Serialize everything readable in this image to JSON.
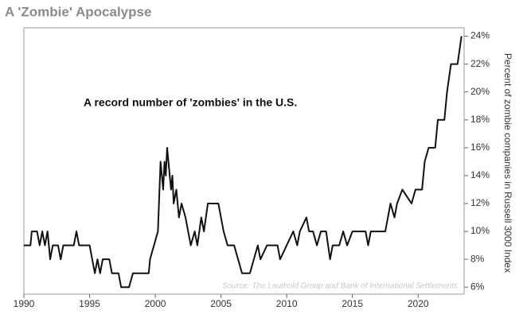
{
  "chart_data": {
    "type": "line",
    "title": "A 'Zombie' Apocalypse",
    "annotation": "A record number of 'zombies' in the U.S.",
    "source": "Source: The Lauthold Group and Bank of International Settlements",
    "y_label": "Percent of zombie companies in Russell 3000 Index",
    "xlim": [
      1990,
      2023.5
    ],
    "xticks": [
      1990,
      1995,
      2000,
      2005,
      2010,
      2015,
      2020
    ],
    "ylim": [
      5.5,
      24.6
    ],
    "yticks": [
      {
        "value": 6,
        "label": "6%"
      },
      {
        "value": 8,
        "label": "8%"
      },
      {
        "value": 10,
        "label": "10%"
      },
      {
        "value": 12,
        "label": "12%"
      },
      {
        "value": 14,
        "label": "14%"
      },
      {
        "value": 16,
        "label": "16%"
      },
      {
        "value": 18,
        "label": "18%"
      },
      {
        "value": 20,
        "label": "20%"
      },
      {
        "value": 22,
        "label": "22%"
      },
      {
        "value": 24,
        "label": "24%"
      }
    ],
    "series": [
      {
        "color": "#111111",
        "x": [
          1990.0,
          1990.5,
          1990.6,
          1991.0,
          1991.2,
          1991.4,
          1991.6,
          1991.8,
          1992.0,
          1992.2,
          1992.6,
          1992.8,
          1993.0,
          1993.8,
          1994.0,
          1994.2,
          1995.0,
          1995.2,
          1995.4,
          1995.6,
          1995.8,
          1996.0,
          1996.5,
          1996.7,
          1997.2,
          1997.4,
          1998.0,
          1998.3,
          1999.5,
          1999.6,
          1999.9,
          2000.2,
          2000.4,
          2000.5,
          2000.6,
          2000.7,
          2000.8,
          2000.9,
          2001.0,
          2001.2,
          2001.3,
          2001.4,
          2001.6,
          2001.8,
          2002.0,
          2002.3,
          2002.5,
          2002.7,
          2003.0,
          2003.2,
          2003.5,
          2003.7,
          2004.0,
          2004.8,
          2005.0,
          2005.2,
          2005.5,
          2006.0,
          2006.3,
          2006.6,
          2007.2,
          2007.5,
          2007.8,
          2008.0,
          2008.5,
          2009.3,
          2009.5,
          2010.0,
          2010.5,
          2010.8,
          2011.0,
          2011.5,
          2011.7,
          2012.0,
          2012.3,
          2012.6,
          2013.0,
          2013.3,
          2013.5,
          2014.0,
          2014.3,
          2014.6,
          2015.0,
          2016.0,
          2016.2,
          2016.4,
          2017.5,
          2017.7,
          2017.9,
          2018.2,
          2018.4,
          2018.8,
          2019.5,
          2019.8,
          2020.3,
          2020.5,
          2020.8,
          2021.3,
          2021.5,
          2022.0,
          2022.2,
          2022.5,
          2023.0,
          2023.3
        ],
        "values": [
          9,
          9,
          10,
          10,
          9,
          10,
          9,
          10,
          8,
          9,
          9,
          8,
          9,
          9,
          10,
          9,
          9,
          8,
          7,
          8,
          7,
          8,
          8,
          7,
          7,
          6,
          6,
          7,
          7,
          8,
          9,
          10,
          15,
          14,
          13,
          15,
          14,
          16,
          15,
          13,
          14,
          12,
          13,
          11,
          12,
          11,
          10,
          9,
          10,
          9,
          11,
          10,
          12,
          12,
          11,
          10,
          9,
          9,
          8,
          7,
          7,
          8,
          9,
          8,
          9,
          9,
          8,
          9,
          10,
          9,
          10,
          11,
          10,
          10,
          9,
          10,
          10,
          8,
          9,
          9,
          10,
          9,
          10,
          10,
          9,
          10,
          10,
          11,
          12,
          11,
          12,
          13,
          12,
          13,
          13,
          15,
          16,
          16,
          18,
          18,
          20,
          22,
          22,
          24
        ]
      }
    ]
  }
}
